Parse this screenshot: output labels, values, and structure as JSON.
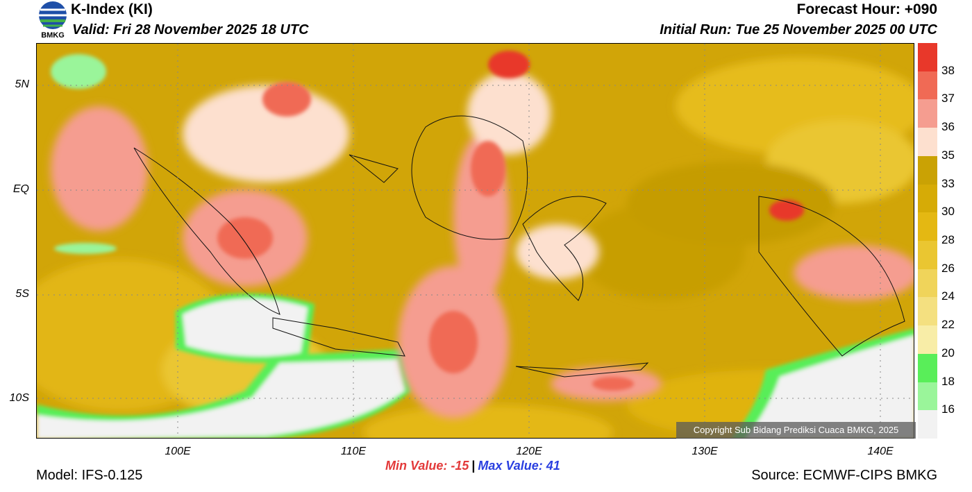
{
  "header": {
    "title": "K-Index (KI)",
    "valid": "Valid: Fri 28 November 2025 18 UTC",
    "forecast_hour": "Forecast Hour: +090",
    "initial_run": "Initial Run: Tue 25 November 2025 00 UTC",
    "logo_text": "BMKG"
  },
  "map": {
    "lat_labels": [
      "5N",
      "EQ",
      "5S",
      "10S"
    ],
    "lon_labels": [
      "100E",
      "110E",
      "120E",
      "130E",
      "140E"
    ],
    "copyright": "Copyright Sub Bidang Prediksi Cuaca BMKG, 2025"
  },
  "colorbar": {
    "labels": [
      "38",
      "37",
      "36",
      "35",
      "33",
      "30",
      "28",
      "26",
      "24",
      "22",
      "20",
      "18",
      "16"
    ],
    "colors": [
      "#e8382a",
      "#f06a55",
      "#f59d90",
      "#fde0cf",
      "#caa204",
      "#d6ab06",
      "#e4b812",
      "#eac631",
      "#f0d45a",
      "#f4e080",
      "#f8eda7",
      "#59ee59",
      "#9af59a",
      "#f2f2f2"
    ]
  },
  "stats": {
    "min_label": "Min Value: -15",
    "separator": "|",
    "max_label": "Max Value:  41"
  },
  "footer": {
    "model": "Model: IFS-0.125",
    "source": "Source: ECMWF-CIPS BMKG"
  }
}
